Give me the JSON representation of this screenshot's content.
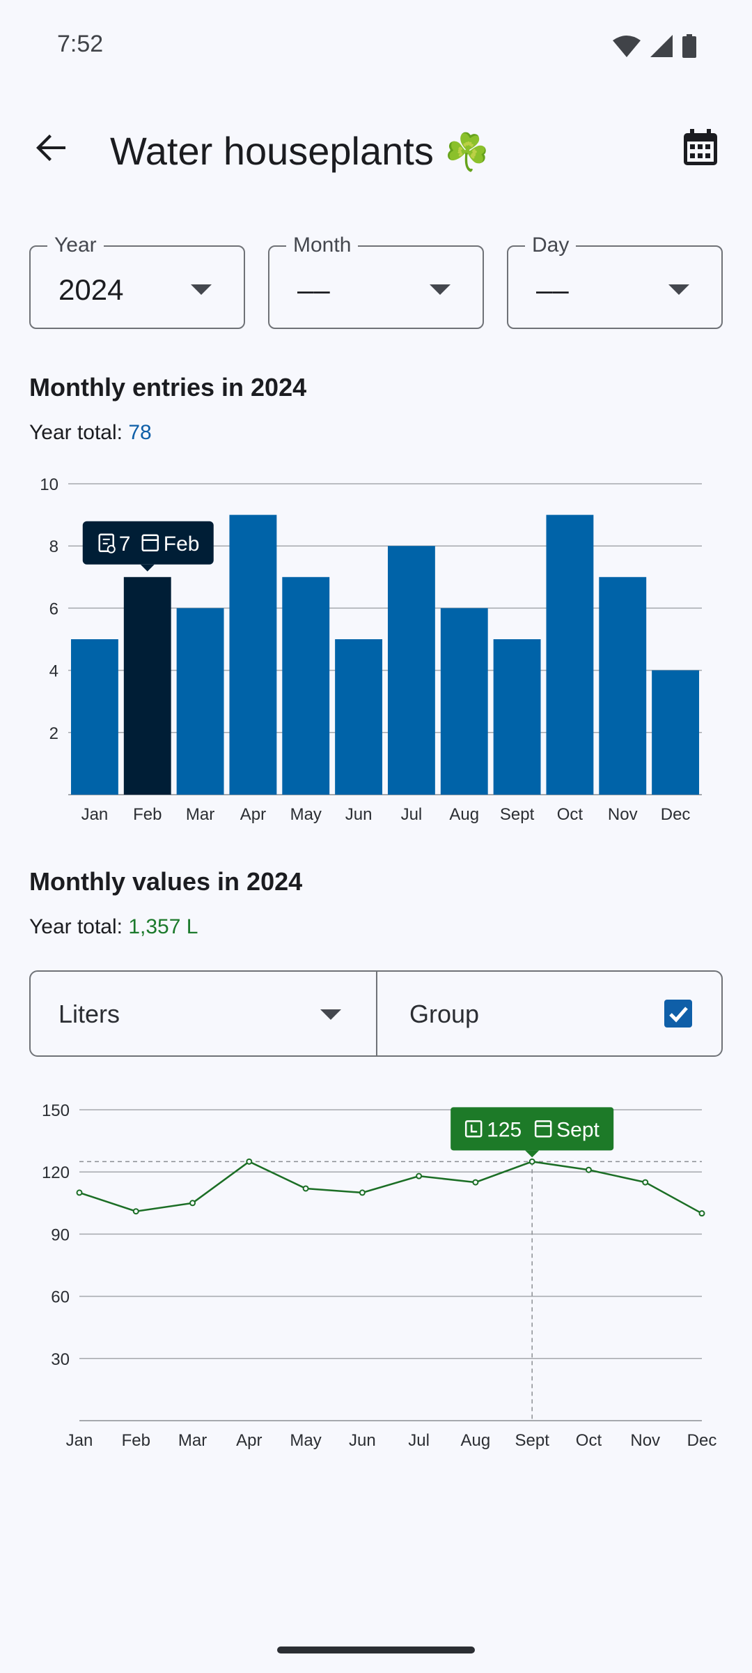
{
  "status": {
    "time": "7:52"
  },
  "header": {
    "title": "Water houseplants",
    "emoji": "☘️"
  },
  "filters": {
    "year": {
      "label": "Year",
      "value": "2024"
    },
    "month": {
      "label": "Month",
      "value": "––"
    },
    "day": {
      "label": "Day",
      "value": "––"
    }
  },
  "entries": {
    "title": "Monthly entries in 2024",
    "total_label": "Year total: ",
    "total_value": "78",
    "tooltip": {
      "count": "7",
      "month": "Feb"
    }
  },
  "values": {
    "title": "Monthly values in 2024",
    "total_label": "Year total: ",
    "total_value": "1,357 L",
    "unit": "Liters",
    "group_label": "Group",
    "group_checked": true,
    "tooltip": {
      "value": "125",
      "month": "Sept"
    }
  },
  "colors": {
    "bar": "#0063a8",
    "bar_selected": "#001e36",
    "line": "#1b6e25",
    "tooltip_green": "#1d7a28"
  },
  "chart_data": [
    {
      "type": "bar",
      "title": "Monthly entries in 2024",
      "categories": [
        "Jan",
        "Feb",
        "Mar",
        "Apr",
        "May",
        "Jun",
        "Jul",
        "Aug",
        "Sept",
        "Oct",
        "Nov",
        "Dec"
      ],
      "values": [
        5,
        7,
        6,
        9,
        7,
        5,
        8,
        6,
        5,
        9,
        7,
        4
      ],
      "ylim": [
        0,
        10
      ],
      "yticks": [
        2,
        4,
        6,
        8,
        10
      ],
      "selected_index": 1,
      "grid": true
    },
    {
      "type": "line",
      "title": "Monthly values in 2024",
      "categories": [
        "Jan",
        "Feb",
        "Mar",
        "Apr",
        "May",
        "Jun",
        "Jul",
        "Aug",
        "Sept",
        "Oct",
        "Nov",
        "Dec"
      ],
      "values": [
        110,
        101,
        105,
        125,
        112,
        110,
        118,
        115,
        125,
        121,
        115,
        100
      ],
      "ylim": [
        0,
        150
      ],
      "yticks": [
        30,
        60,
        90,
        120,
        150
      ],
      "selected_index": 8,
      "grid": true
    }
  ]
}
